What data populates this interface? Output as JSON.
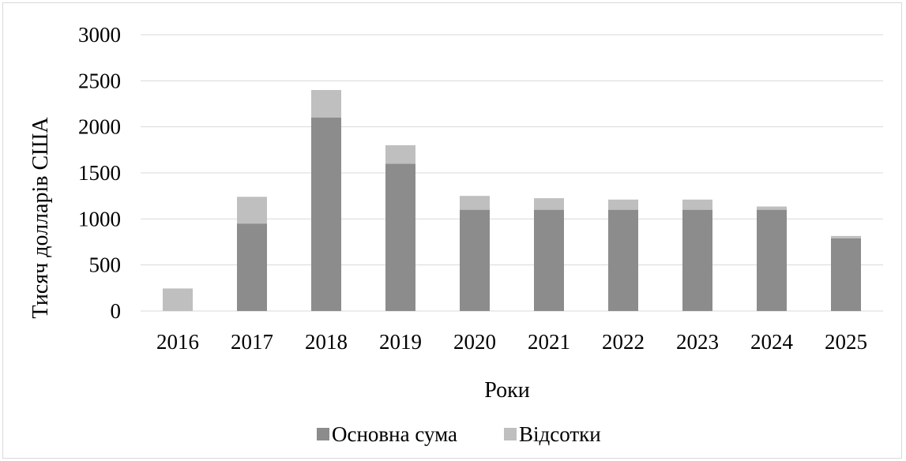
{
  "chart_data": {
    "type": "bar",
    "stacked": true,
    "title": "",
    "xlabel": "Роки",
    "ylabel": "Тисяч долларів США",
    "categories": [
      "2016",
      "2017",
      "2018",
      "2019",
      "2020",
      "2021",
      "2022",
      "2023",
      "2024",
      "2025"
    ],
    "series": [
      {
        "name": "Основна сума",
        "color": "#8c8c8c",
        "values": [
          0,
          950,
          2100,
          1600,
          1100,
          1100,
          1100,
          1100,
          1100,
          790
        ]
      },
      {
        "name": "Відсотки",
        "color": "#bfbfbf",
        "values": [
          245,
          290,
          300,
          200,
          150,
          125,
          110,
          110,
          35,
          25
        ]
      }
    ],
    "ylim": [
      0,
      3000
    ],
    "yticks": [
      "0",
      "500",
      "1000",
      "1500",
      "2000",
      "2500",
      "3000"
    ],
    "grid": true,
    "legend_position": "bottom",
    "gridline_color": "#d9d9d9"
  }
}
